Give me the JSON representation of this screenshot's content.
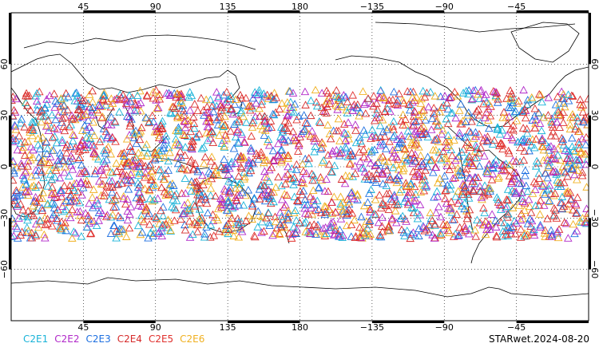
{
  "map": {
    "top_lon_labels": [
      "45",
      "90",
      "135",
      "180",
      "−135",
      "−90",
      "−45"
    ],
    "bottom_lon_labels": [
      "45",
      "90",
      "135",
      "180",
      "−135",
      "−90",
      "−45"
    ],
    "left_lat_labels": [
      "60",
      "30",
      "0",
      "−30",
      "−60"
    ],
    "right_lat_labels": [
      "60",
      "30",
      "0",
      "−30",
      "−60"
    ],
    "lon_range": [
      0,
      360
    ],
    "lat_range": [
      -90,
      90
    ],
    "grid": "dotted",
    "central_longitude": 180,
    "symbol": "open-triangle",
    "observation_lat_band": [
      -42,
      45
    ]
  },
  "legend": {
    "items": [
      {
        "label": "C2E1",
        "color": "#19b3d8"
      },
      {
        "label": "C2E2",
        "color": "#b129c9"
      },
      {
        "label": "C2E3",
        "color": "#1d6fe0"
      },
      {
        "label": "C2E4",
        "color": "#d62a2a"
      },
      {
        "label": "C2E5",
        "color": "#e0302d"
      },
      {
        "label": "C2E6",
        "color": "#f0b020"
      }
    ]
  },
  "stamp": "STARwet.2024-08-20"
}
